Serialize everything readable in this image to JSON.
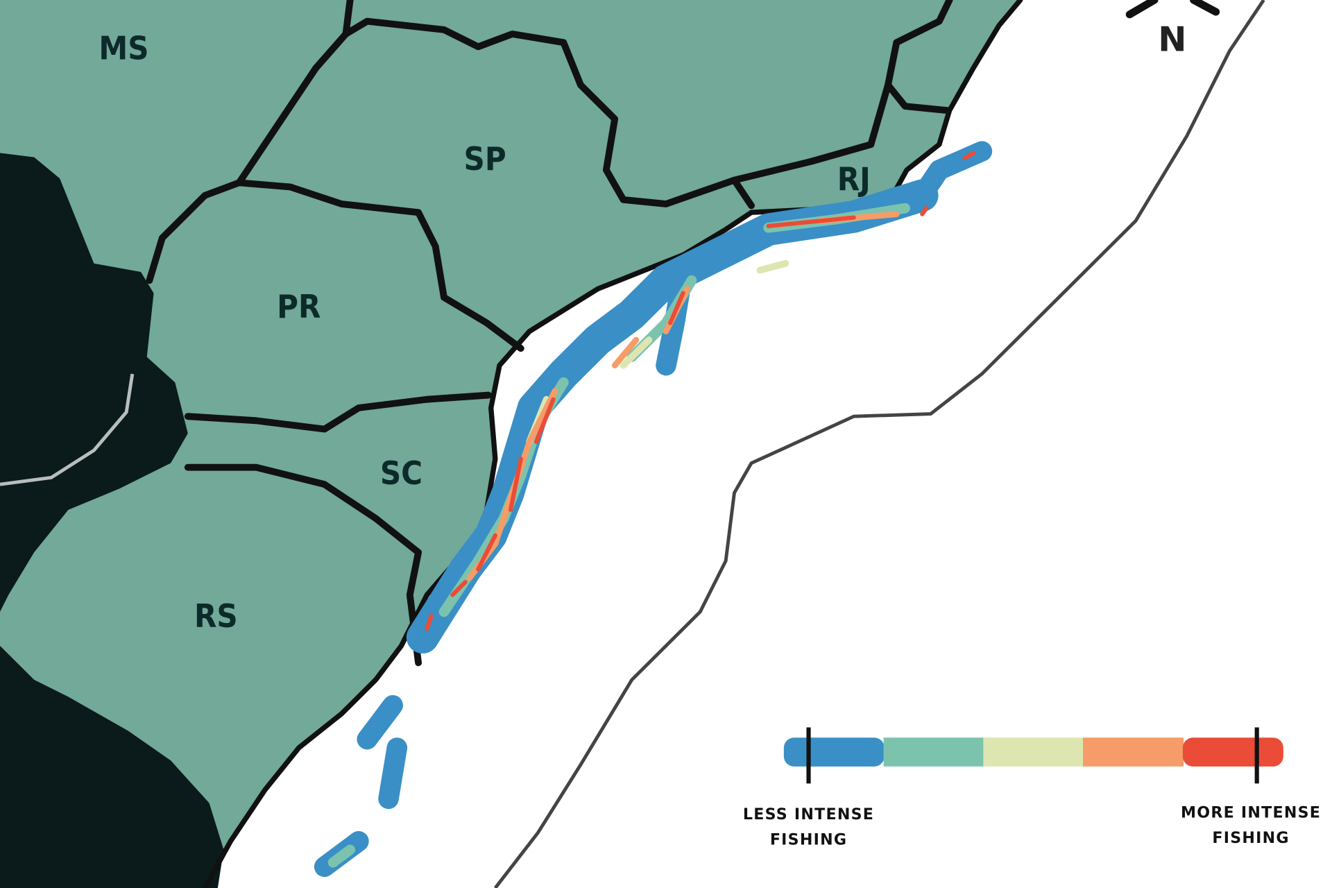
{
  "map": {
    "states": [
      {
        "code": "MS"
      },
      {
        "code": "SP"
      },
      {
        "code": "RJ"
      },
      {
        "code": "PR"
      },
      {
        "code": "SC"
      },
      {
        "code": "RS"
      }
    ],
    "north_label": "N",
    "colors": {
      "land": "#72a999",
      "neighbor_land": "#0b1a1b",
      "ocean": "#ffffff",
      "border": "#111111",
      "shelf_line": "#444444"
    }
  },
  "legend": {
    "low_label_line1": "LESS INTENSE",
    "low_label_line2": "FISHING",
    "high_label_line1": "MORE INTENSE",
    "high_label_line2": "FISHING",
    "colors": [
      "#3a8fc6",
      "#7cc3ae",
      "#dde6b0",
      "#f59c68",
      "#ea4c37"
    ]
  }
}
